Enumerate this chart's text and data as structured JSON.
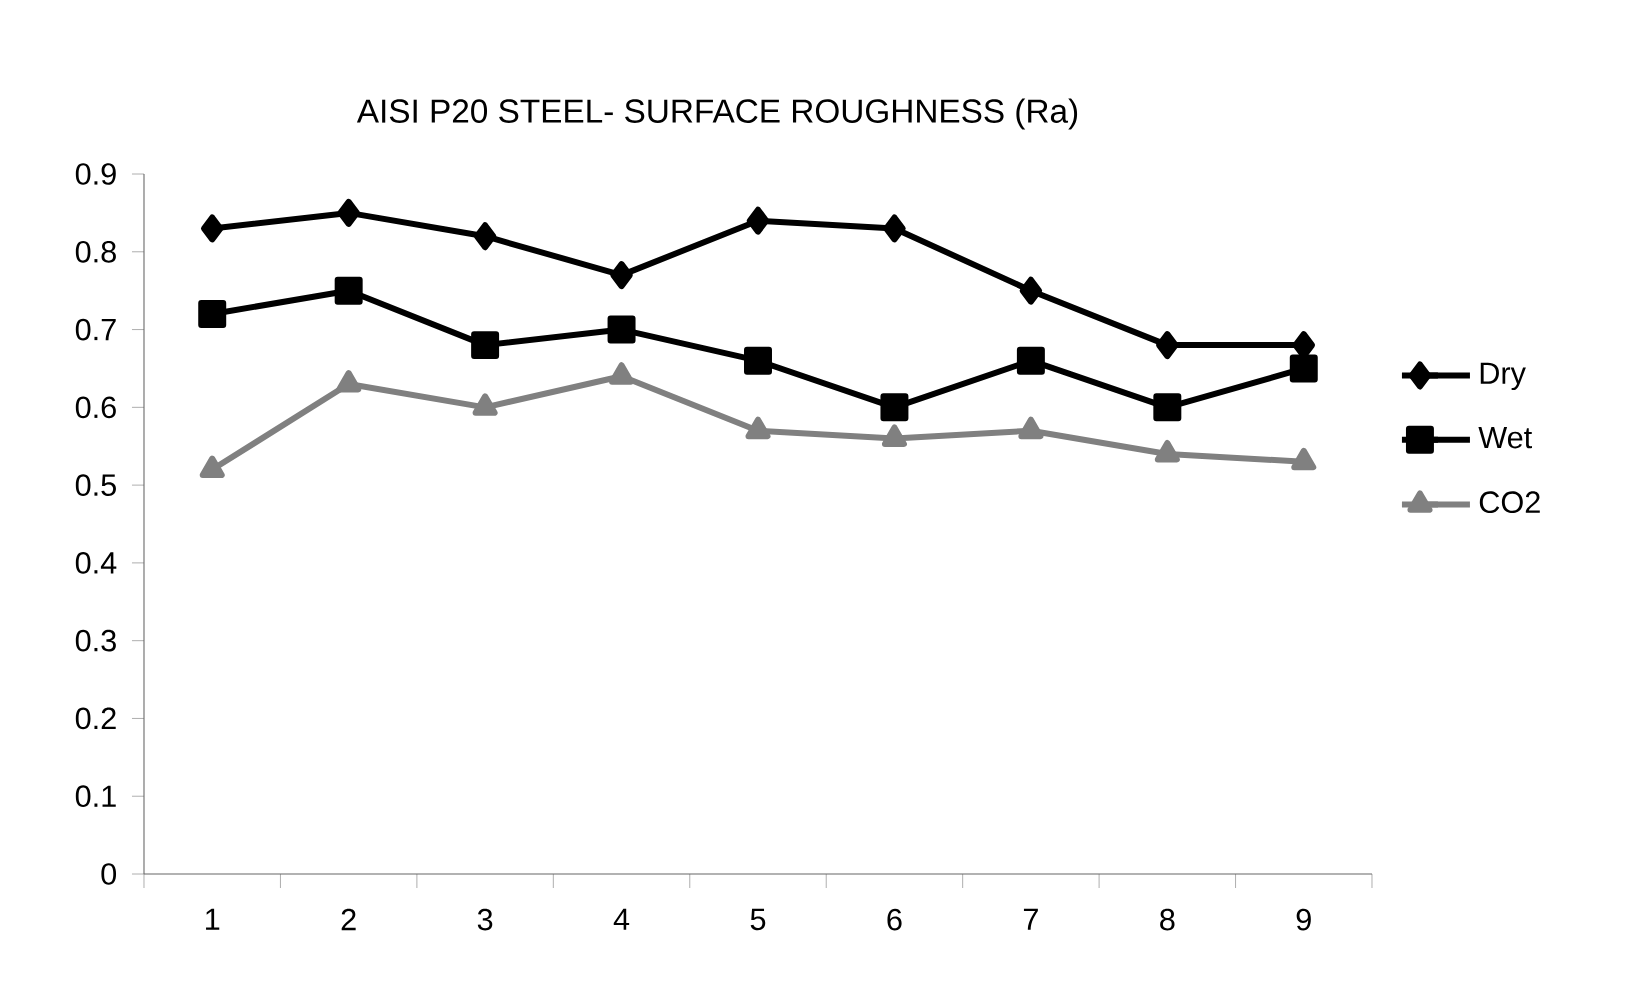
{
  "chart_data": {
    "type": "line",
    "title": "AISI P20 STEEL- SURFACE ROUGHNESS (Ra)",
    "categories": [
      "1",
      "2",
      "3",
      "4",
      "5",
      "6",
      "7",
      "8",
      "9"
    ],
    "series": [
      {
        "name": "Dry",
        "color": "#000000",
        "marker": "diamond",
        "values": [
          0.83,
          0.85,
          0.82,
          0.77,
          0.84,
          0.83,
          0.75,
          0.68,
          0.68
        ]
      },
      {
        "name": "Wet",
        "color": "#000000",
        "marker": "square",
        "values": [
          0.72,
          0.75,
          0.68,
          0.7,
          0.66,
          0.6,
          0.66,
          0.6,
          0.65
        ]
      },
      {
        "name": "CO2",
        "color": "#808080",
        "marker": "triangle",
        "values": [
          0.52,
          0.63,
          0.6,
          0.64,
          0.57,
          0.56,
          0.57,
          0.54,
          0.53
        ]
      }
    ],
    "ylim": [
      0,
      0.9
    ],
    "yticks": [
      0,
      0.1,
      0.2,
      0.3,
      0.4,
      0.5,
      0.6,
      0.7,
      0.8,
      0.9
    ],
    "grid": false,
    "legend": "right",
    "line_style": "solid"
  }
}
